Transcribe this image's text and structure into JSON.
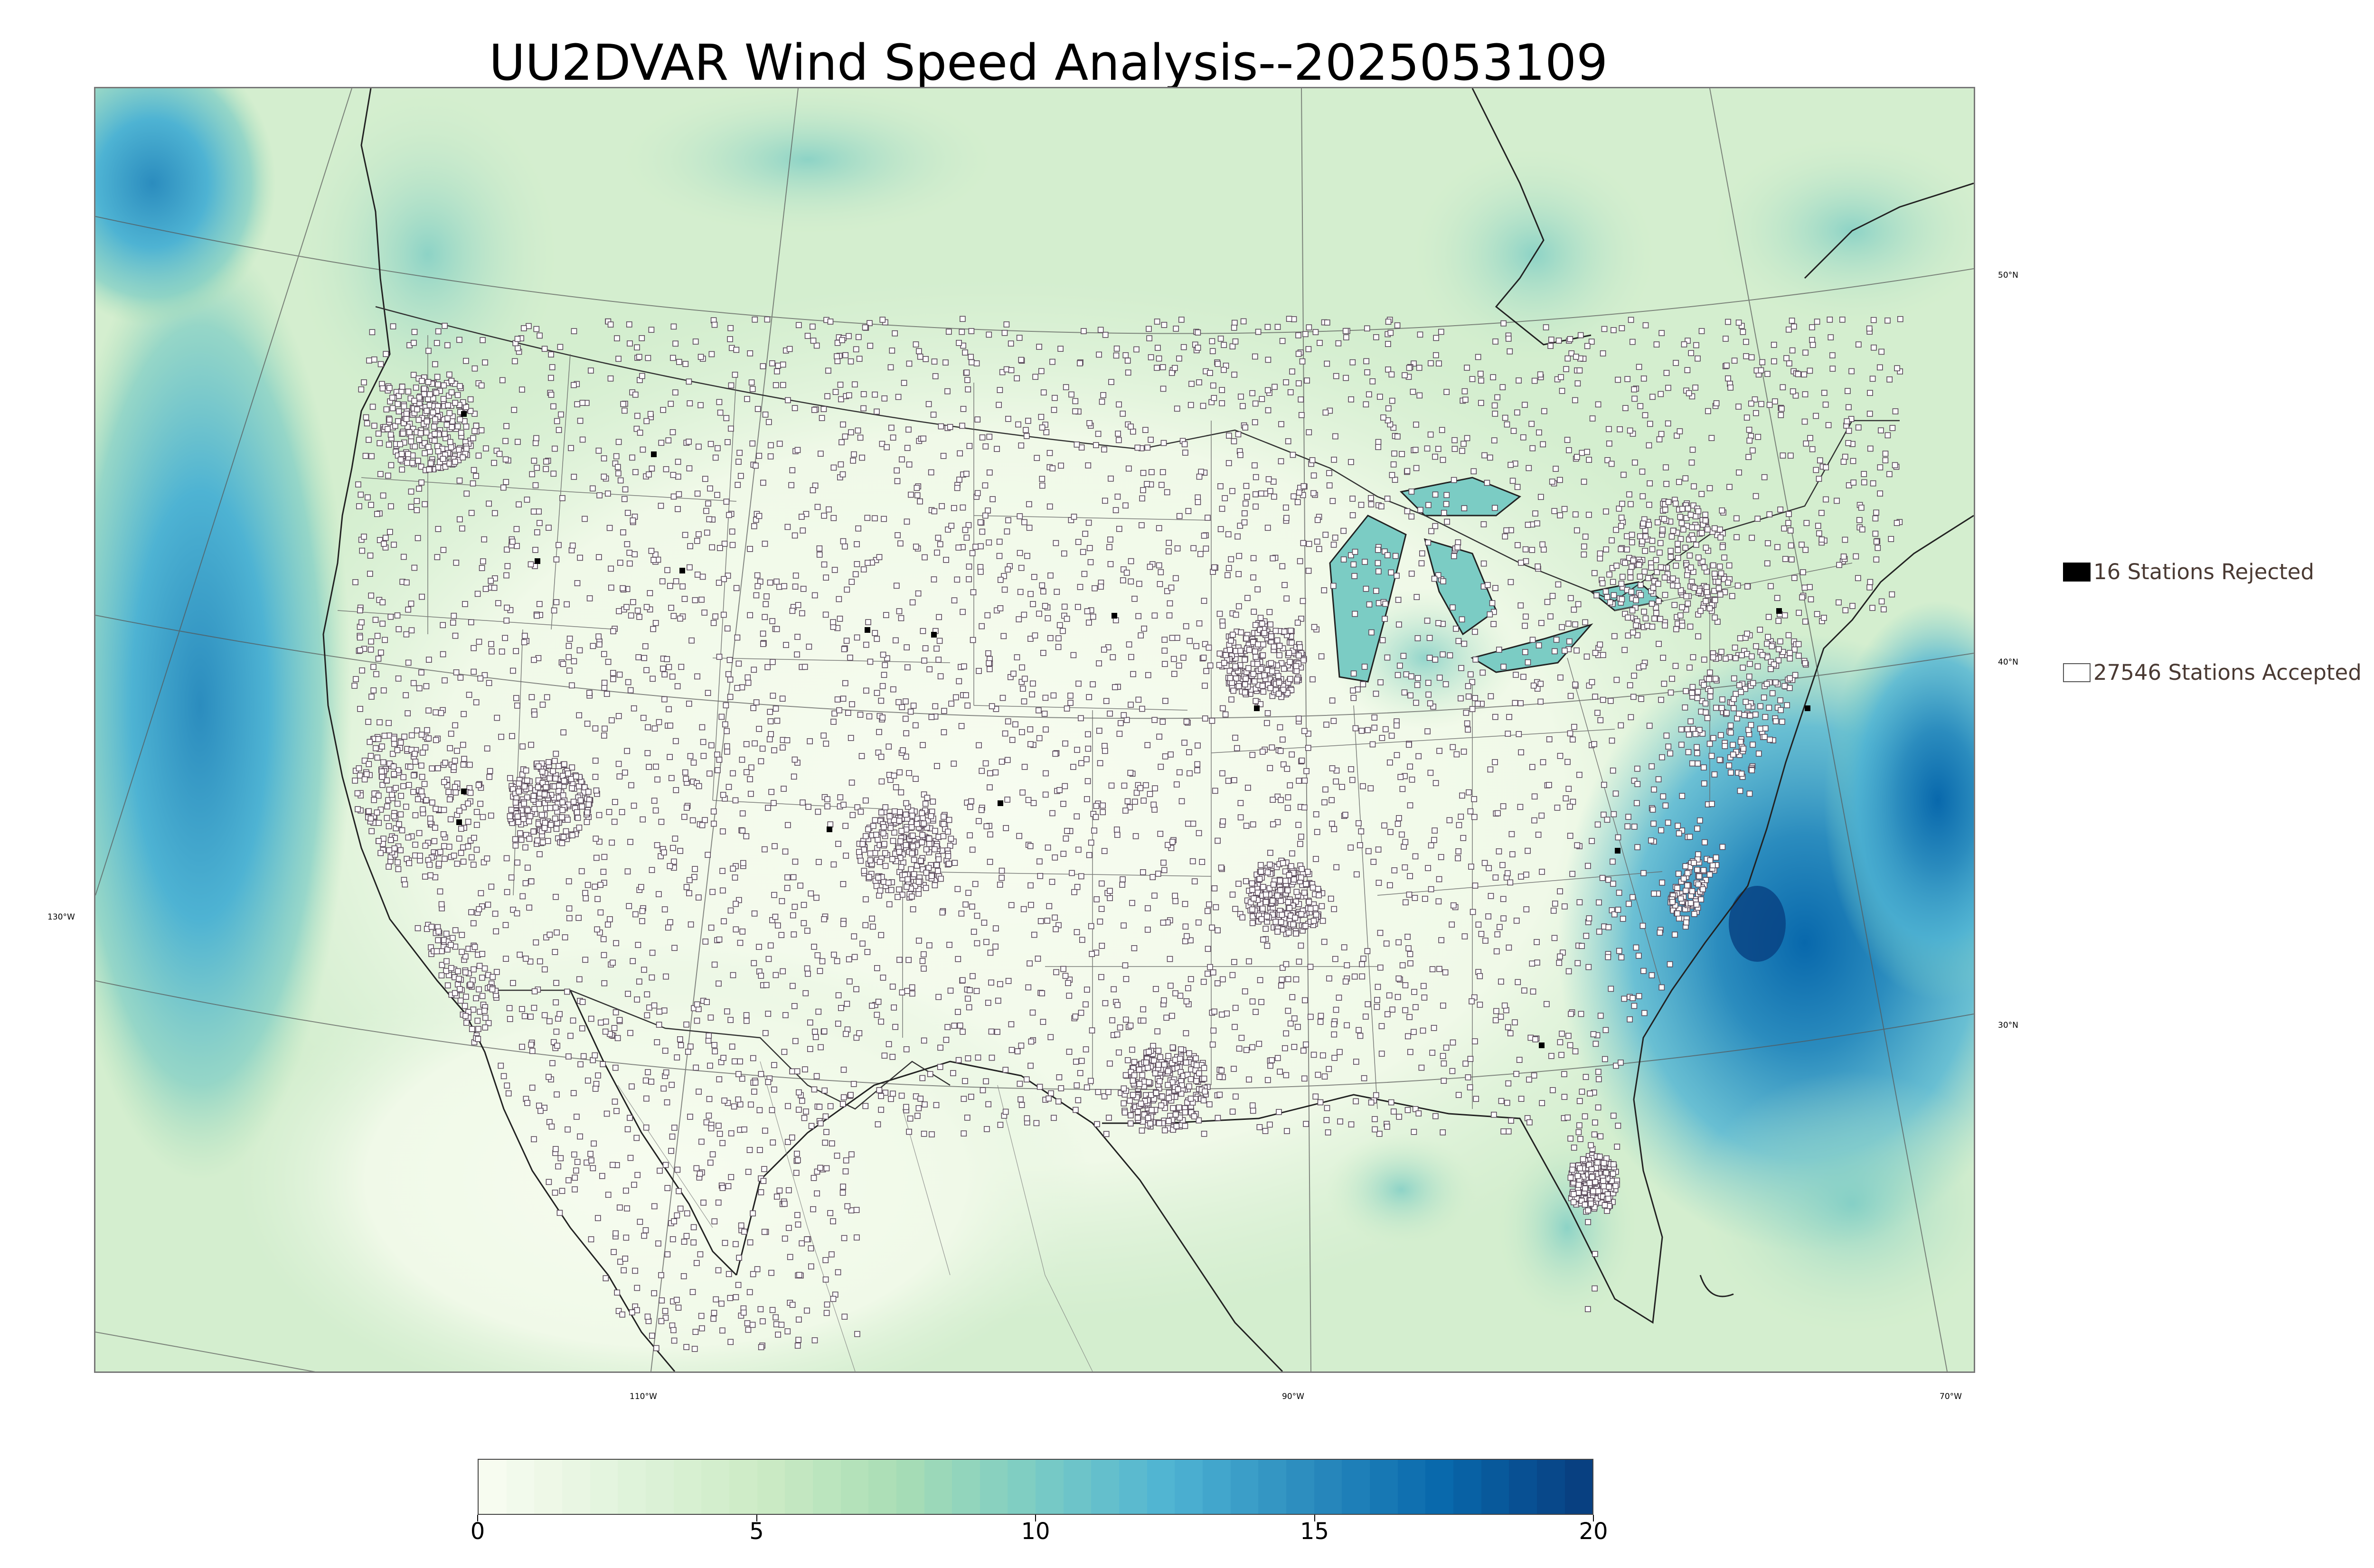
{
  "title": "UU2DVAR Wind Speed Analysis--2025053109",
  "map": {
    "projection": "lambert-conformal",
    "region": "CONUS",
    "basemap": [
      "coastlines",
      "country-borders",
      "state-borders"
    ],
    "longitude_labels": [
      "130°W",
      "110°W",
      "90°W",
      "70°W"
    ],
    "latitude_labels": [
      "50°N",
      "40°N",
      "30°N"
    ],
    "field": "wind speed",
    "high_wind_areas": [
      "Pacific offshore",
      "Atlantic offshore",
      "Hudson Bay"
    ]
  },
  "legend": {
    "rejected_label": "16 Stations Rejected",
    "accepted_label": "27546 Stations Accepted",
    "rejected_color": "#000000",
    "accepted_color": "#ffffff"
  },
  "colorbar": {
    "min": 0,
    "max": 20,
    "ticks": [
      "0",
      "5",
      "10",
      "15",
      "20"
    ],
    "colormap": "GnBu",
    "colors": [
      "#f7fcf0",
      "#e0f3db",
      "#ccebc5",
      "#a8ddb5",
      "#7bccc4",
      "#4eb3d3",
      "#2b8cbe",
      "#0868ac",
      "#084081"
    ]
  }
}
